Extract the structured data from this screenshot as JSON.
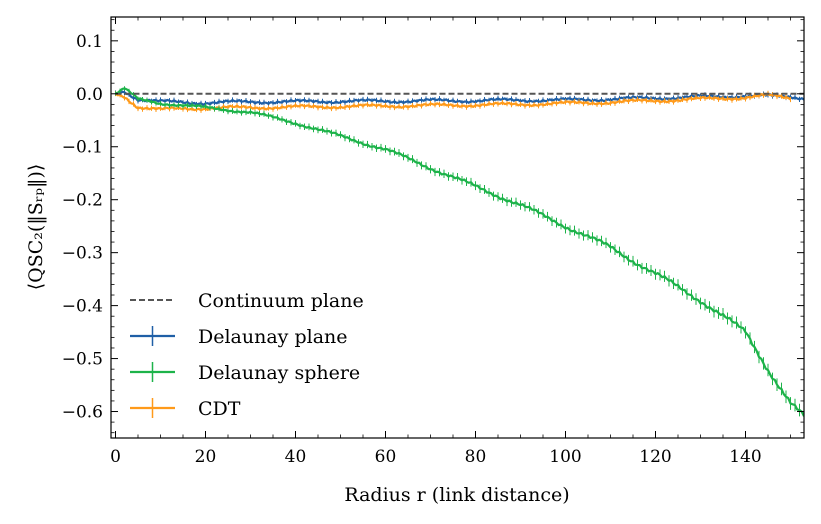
{
  "chart_data": {
    "type": "line",
    "title": "",
    "xlabel": "Radius r (link distance)",
    "ylabel": "⟨QSC₂(‖Sᵣₚ‖)⟩",
    "xlim": [
      -1,
      153
    ],
    "ylim": [
      -0.65,
      0.145
    ],
    "x_ticks": [
      0,
      20,
      40,
      60,
      80,
      100,
      120,
      140
    ],
    "x_tick_labels": [
      "0",
      "20",
      "40",
      "60",
      "80",
      "100",
      "120",
      "140"
    ],
    "y_ticks": [
      0.1,
      0.0,
      -0.1,
      -0.2,
      -0.3,
      -0.4,
      -0.5,
      -0.6
    ],
    "y_tick_labels": [
      "0.1",
      "0.0",
      "−0.1",
      "−0.2",
      "−0.3",
      "−0.4",
      "−0.5",
      "−0.6"
    ],
    "grid": false,
    "legend_position": "bottom-left",
    "series": [
      {
        "name": "Continuum plane",
        "color": "#555555",
        "style": "dashed",
        "x": [
          0,
          153
        ],
        "y": [
          0.0,
          0.0
        ]
      },
      {
        "name": "Delaunay plane",
        "color": "#1f5fa6",
        "style": "errorbar",
        "x": [
          0,
          2,
          5,
          10,
          15,
          20,
          30,
          40,
          50,
          60,
          70,
          80,
          90,
          100,
          110,
          120,
          130,
          140,
          150,
          153
        ],
        "y": [
          0.0,
          0.005,
          -0.01,
          -0.015,
          -0.016,
          -0.017,
          -0.015,
          -0.015,
          -0.014,
          -0.014,
          -0.013,
          -0.013,
          -0.012,
          -0.012,
          -0.01,
          -0.008,
          -0.006,
          -0.004,
          -0.005,
          -0.008
        ]
      },
      {
        "name": "Delaunay sphere",
        "color": "#1db34a",
        "style": "errorbar",
        "x": [
          0,
          2,
          5,
          10,
          15,
          20,
          30,
          40,
          50,
          60,
          70,
          80,
          90,
          100,
          110,
          120,
          130,
          140,
          145,
          150,
          153
        ],
        "y": [
          0.0,
          0.01,
          -0.01,
          -0.018,
          -0.022,
          -0.026,
          -0.035,
          -0.055,
          -0.08,
          -0.105,
          -0.14,
          -0.175,
          -0.21,
          -0.25,
          -0.29,
          -0.34,
          -0.39,
          -0.45,
          -0.52,
          -0.585,
          -0.61
        ]
      },
      {
        "name": "CDT",
        "color": "#ff9a1a",
        "style": "errorbar",
        "x": [
          0,
          2,
          5,
          10,
          15,
          20,
          30,
          40,
          50,
          60,
          70,
          80,
          90,
          100,
          110,
          120,
          130,
          140,
          145,
          150
        ],
        "y": [
          0.0,
          -0.005,
          -0.025,
          -0.03,
          -0.028,
          -0.027,
          -0.026,
          -0.025,
          -0.024,
          -0.023,
          -0.022,
          -0.021,
          -0.02,
          -0.018,
          -0.016,
          -0.013,
          -0.01,
          -0.007,
          -0.003,
          -0.008
        ]
      }
    ]
  }
}
